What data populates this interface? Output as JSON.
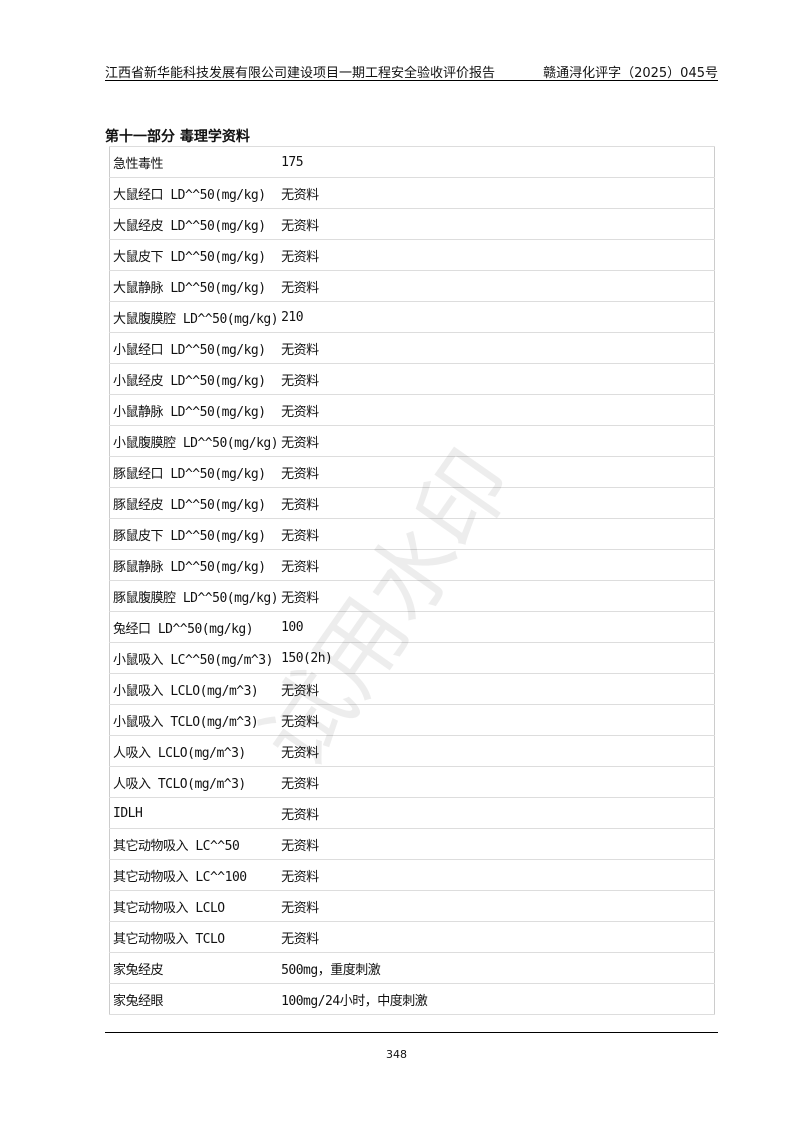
{
  "header": {
    "left": "江西省新华能科技发展有限公司建设项目一期工程安全验收评价报告",
    "right": "赣通浔化评字（2025）045号"
  },
  "section_title": "第十一部分 毒理学资料",
  "rows": [
    {
      "k": "急性毒性",
      "v": "175"
    },
    {
      "k": "大鼠经口 LD^^50(mg/kg)",
      "v": "无资料"
    },
    {
      "k": "大鼠经皮 LD^^50(mg/kg)",
      "v": "无资料"
    },
    {
      "k": "大鼠皮下 LD^^50(mg/kg)",
      "v": "无资料"
    },
    {
      "k": "大鼠静脉 LD^^50(mg/kg)",
      "v": "无资料"
    },
    {
      "k": "大鼠腹膜腔 LD^^50(mg/kg)",
      "v": "210"
    },
    {
      "k": "小鼠经口 LD^^50(mg/kg)",
      "v": "无资料"
    },
    {
      "k": "小鼠经皮 LD^^50(mg/kg)",
      "v": "无资料"
    },
    {
      "k": "小鼠静脉 LD^^50(mg/kg)",
      "v": "无资料"
    },
    {
      "k": "小鼠腹膜腔 LD^^50(mg/kg)",
      "v": "无资料"
    },
    {
      "k": "豚鼠经口 LD^^50(mg/kg)",
      "v": "无资料"
    },
    {
      "k": "豚鼠经皮 LD^^50(mg/kg)",
      "v": "无资料"
    },
    {
      "k": "豚鼠皮下 LD^^50(mg/kg)",
      "v": "无资料"
    },
    {
      "k": "豚鼠静脉 LD^^50(mg/kg)",
      "v": "无资料"
    },
    {
      "k": "豚鼠腹膜腔 LD^^50(mg/kg)",
      "v": "无资料"
    },
    {
      "k": "兔经口 LD^^50(mg/kg)",
      "v": "100"
    },
    {
      "k": "小鼠吸入 LC^^50(mg/m^3)",
      "v": "150(2h)"
    },
    {
      "k": "小鼠吸入 LCLO(mg/m^3)",
      "v": "无资料"
    },
    {
      "k": "小鼠吸入 TCLO(mg/m^3)",
      "v": "无资料"
    },
    {
      "k": "人吸入 LCLO(mg/m^3)",
      "v": "无资料"
    },
    {
      "k": "人吸入 TCLO(mg/m^3)",
      "v": "无资料"
    },
    {
      "k": "IDLH",
      "v": "无资料"
    },
    {
      "k": "其它动物吸入 LC^^50",
      "v": "无资料"
    },
    {
      "k": "其它动物吸入 LC^^100",
      "v": "无资料"
    },
    {
      "k": "其它动物吸入 LCLO",
      "v": "无资料"
    },
    {
      "k": "其它动物吸入 TCLO",
      "v": "无资料"
    },
    {
      "k": "家兔经皮",
      "v": "500mg，重度刺激"
    },
    {
      "k": "家兔经眼",
      "v": "100mg/24小时，中度刺激"
    }
  ],
  "watermark": "试用水印",
  "page_number": "348"
}
